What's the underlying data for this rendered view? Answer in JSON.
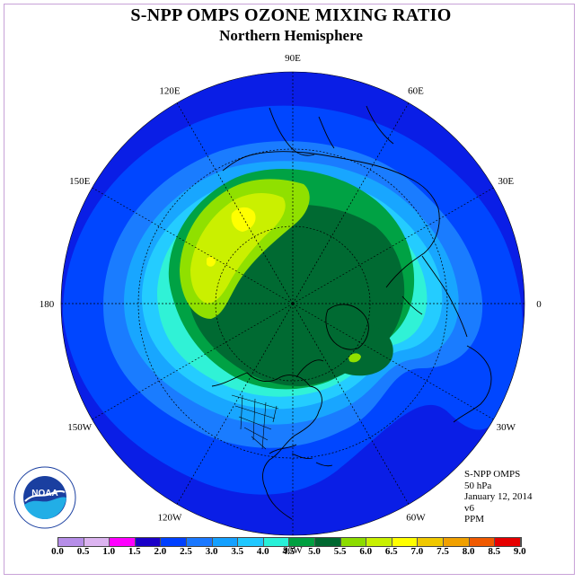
{
  "title": "S-NPP OMPS OZONE MIXING RATIO",
  "subtitle": "Northern Hemisphere",
  "info_lines": [
    "S-NPP OMPS",
    "50 hPa",
    "January 12, 2014",
    "v6",
    "PPM"
  ],
  "logo_text": "NOAA",
  "longitude_labels": [
    {
      "text": "90E",
      "lon": 90
    },
    {
      "text": "60E",
      "lon": 60
    },
    {
      "text": "30E",
      "lon": 30
    },
    {
      "text": "0",
      "lon": 0
    },
    {
      "text": "30W",
      "lon": -30
    },
    {
      "text": "60W",
      "lon": -60
    },
    {
      "text": "90W",
      "lon": -90
    },
    {
      "text": "120W",
      "lon": -120
    },
    {
      "text": "150W",
      "lon": -150
    },
    {
      "text": "180",
      "lon": 180
    },
    {
      "text": "150E",
      "lon": 150
    },
    {
      "text": "120E",
      "lon": 120
    }
  ],
  "colorbar": {
    "ticks": [
      "0.0",
      "0.5",
      "1.0",
      "1.5",
      "2.0",
      "2.5",
      "3.0",
      "3.5",
      "4.0",
      "4.5",
      "5.0",
      "5.5",
      "6.0",
      "6.5",
      "7.0",
      "7.5",
      "8.0",
      "8.5",
      "9.0"
    ],
    "colors": [
      "#b68ee8",
      "#dcb4f0",
      "#ff00ff",
      "#1a00c8",
      "#0040ff",
      "#1a78ff",
      "#14a0ff",
      "#20c8ff",
      "#28f0d8",
      "#00a040",
      "#006830",
      "#8cdc00",
      "#c8f000",
      "#ffff00",
      "#f0c800",
      "#f0a000",
      "#f05a00",
      "#e60000",
      "#8c5a32"
    ]
  },
  "map_colors": {
    "ocean_outer": "#0a1ee6",
    "blue2": "#0046ff",
    "blue3": "#1a7cff",
    "cyan1": "#18a6ff",
    "cyan2": "#24ccff",
    "aqua": "#30f2d6",
    "green": "#00a244",
    "dkgreen": "#006a32",
    "lime": "#90e000",
    "yellowgreen": "#caf000",
    "yellow": "#ffff00"
  }
}
